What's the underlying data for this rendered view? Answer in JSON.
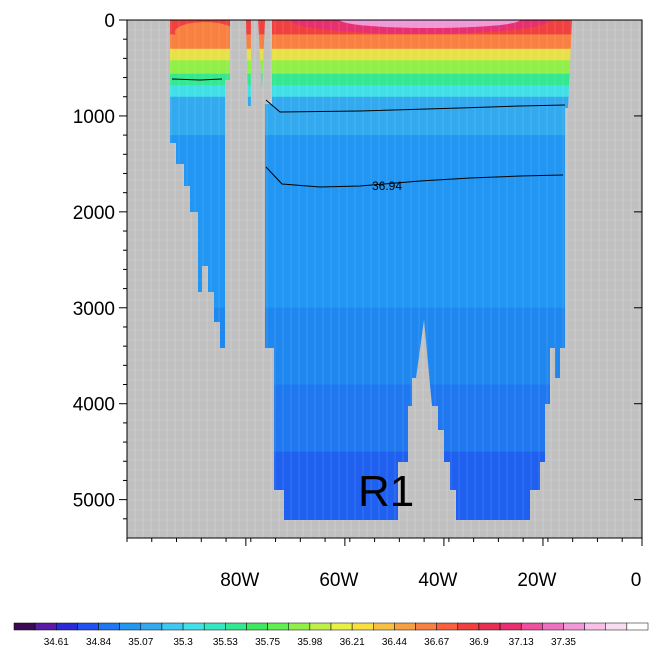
{
  "chart_data": {
    "type": "heatmap",
    "x_ticks": [
      "80W",
      "60W",
      "40W",
      "20W",
      "0"
    ],
    "x_tick_values": [
      -80,
      -60,
      -40,
      -20,
      0
    ],
    "xlim": [
      -104,
      0
    ],
    "y_ticks": [
      "0",
      "1000",
      "2000",
      "3000",
      "4000",
      "5000"
    ],
    "y_tick_values": [
      0,
      1000,
      2000,
      3000,
      4000,
      5000
    ],
    "ylim": [
      0,
      5400
    ],
    "y_reversed": true,
    "contour_label": "36.94",
    "region_label": "R1",
    "colorbar_labels": [
      "34.61",
      "34.84",
      "35.07",
      "35.3",
      "35.53",
      "35.75",
      "35.98",
      "36.21",
      "36.44",
      "36.67",
      "36.9",
      "37.13",
      "37.35"
    ],
    "colorbar_colors": [
      "#3b0a55",
      "#5a1aa6",
      "#2a2ad8",
      "#1f52f0",
      "#1f78f0",
      "#2196f3",
      "#33aaf0",
      "#3fc8f0",
      "#40e0e6",
      "#33e8c0",
      "#33e890",
      "#40e860",
      "#60f050",
      "#90f048",
      "#c0f048",
      "#e8f048",
      "#f8e040",
      "#f8c040",
      "#f8a040",
      "#f88040",
      "#f86040",
      "#f04040",
      "#e83050",
      "#e83070",
      "#f050a0",
      "#f070c0",
      "#f098d8",
      "#f8c0e8",
      "#f8dcf0",
      "#ffffff"
    ],
    "land_color": "#c0c0c0",
    "profile_bands": [
      {
        "from": 0,
        "to": 150,
        "color": "#f04040"
      },
      {
        "from": 150,
        "to": 300,
        "color": "#f88040"
      },
      {
        "from": 300,
        "to": 420,
        "color": "#e8e048"
      },
      {
        "from": 420,
        "to": 560,
        "color": "#90f048"
      },
      {
        "from": 560,
        "to": 680,
        "color": "#33e890"
      },
      {
        "from": 680,
        "to": 800,
        "color": "#40e0e6"
      },
      {
        "from": 800,
        "to": 1200,
        "color": "#33aaf0"
      },
      {
        "from": 1200,
        "to": 3000,
        "color": "#2196f3"
      },
      {
        "from": 3000,
        "to": 3800,
        "color": "#1f88f0"
      },
      {
        "from": 3800,
        "to": 4500,
        "color": "#1f78f0"
      },
      {
        "from": 4500,
        "to": 5300,
        "color": "#1f60f0"
      }
    ]
  }
}
